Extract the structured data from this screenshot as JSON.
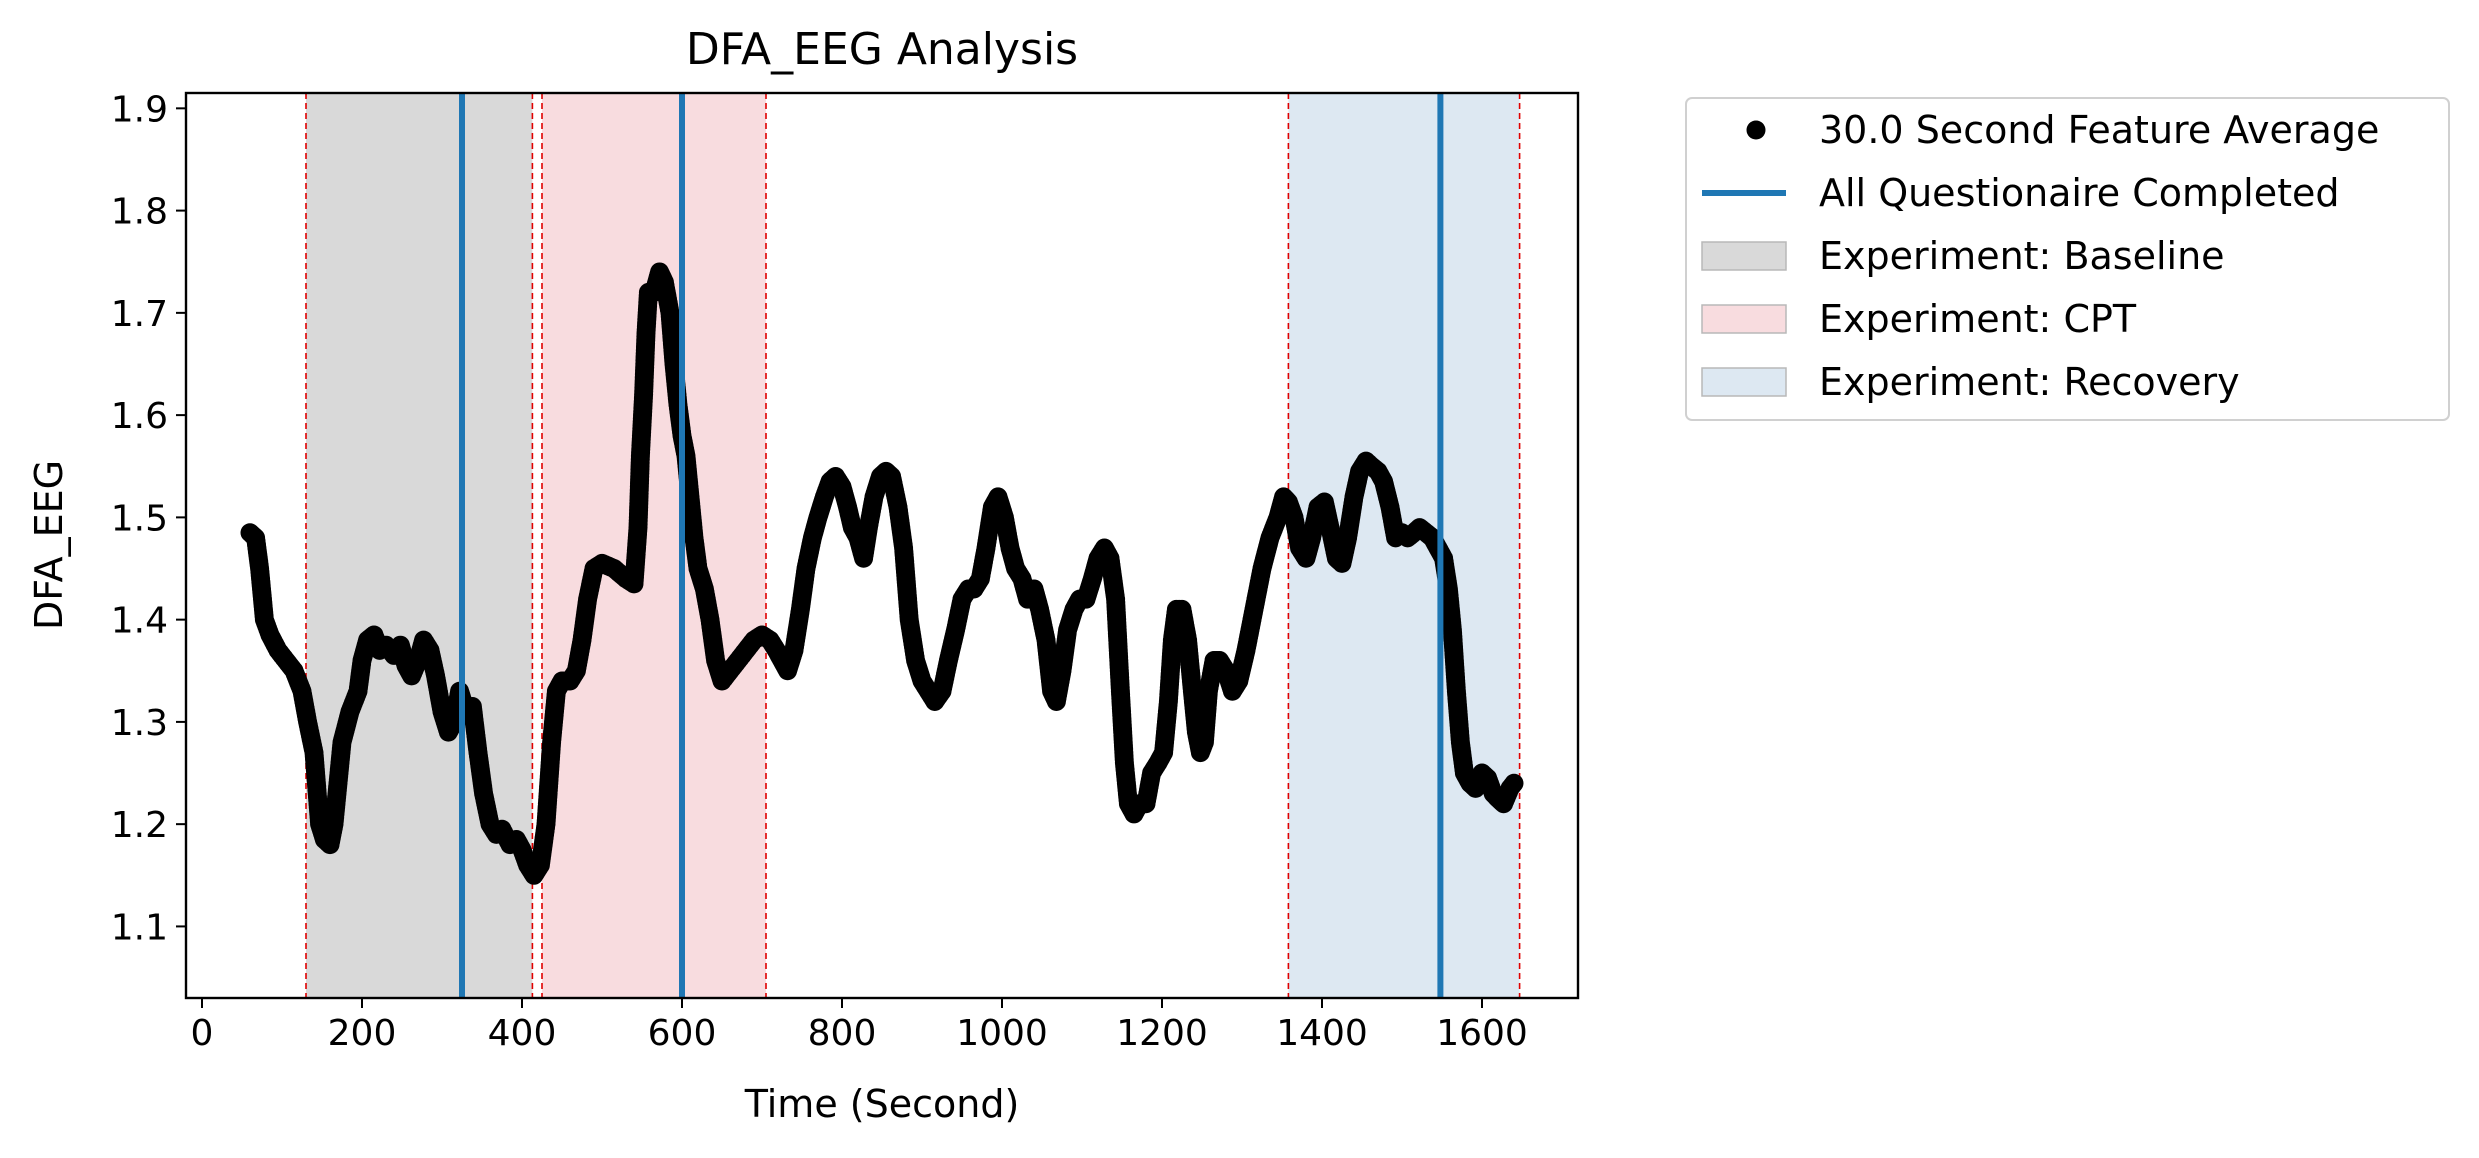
{
  "chart_data": {
    "type": "scatter",
    "title": "DFA_EEG Analysis",
    "xlabel": "Time (Second)",
    "ylabel": "DFA_EEG",
    "xlim": [
      -20,
      1720
    ],
    "ylim": [
      1.03,
      1.915
    ],
    "xticks": [
      0,
      200,
      400,
      600,
      800,
      1000,
      1200,
      1400,
      1600
    ],
    "yticks": [
      1.1,
      1.2,
      1.3,
      1.4,
      1.5,
      1.6,
      1.7,
      1.8,
      1.9
    ],
    "grid": false,
    "legend_position": "outside-right-top",
    "legend": [
      {
        "label": "30.0 Second Feature Average",
        "kind": "marker"
      },
      {
        "label": "All Questionaire Completed",
        "kind": "line"
      },
      {
        "label": "Experiment: Baseline",
        "kind": "patch"
      },
      {
        "label": "Experiment: CPT",
        "kind": "patch"
      },
      {
        "label": "Experiment: Recovery",
        "kind": "patch"
      }
    ],
    "spans": [
      {
        "name": "Experiment: Baseline",
        "start": 130,
        "end": 413,
        "color": "#d9d9d9"
      },
      {
        "name": "Experiment: CPT",
        "start": 425,
        "end": 705,
        "color": "#f8dcdf"
      },
      {
        "name": "Experiment: Recovery",
        "start": 1358,
        "end": 1647,
        "color": "#dde8f2"
      }
    ],
    "questionnaire_lines": [
      325,
      600,
      1548
    ],
    "boundary_color": "#e00000",
    "line_color": "#1f77b4",
    "marker_color": "#000000",
    "series": [
      {
        "name": "30.0 Second Feature Average",
        "points": [
          [
            60,
            1.485
          ],
          [
            67,
            1.48
          ],
          [
            72,
            1.45
          ],
          [
            78,
            1.4
          ],
          [
            85,
            1.385
          ],
          [
            95,
            1.37
          ],
          [
            105,
            1.36
          ],
          [
            115,
            1.35
          ],
          [
            125,
            1.33
          ],
          [
            132,
            1.3
          ],
          [
            140,
            1.27
          ],
          [
            147,
            1.2
          ],
          [
            153,
            1.185
          ],
          [
            160,
            1.18
          ],
          [
            165,
            1.2
          ],
          [
            170,
            1.24
          ],
          [
            175,
            1.28
          ],
          [
            185,
            1.31
          ],
          [
            195,
            1.33
          ],
          [
            200,
            1.36
          ],
          [
            207,
            1.38
          ],
          [
            215,
            1.385
          ],
          [
            222,
            1.37
          ],
          [
            230,
            1.375
          ],
          [
            240,
            1.365
          ],
          [
            248,
            1.375
          ],
          [
            255,
            1.355
          ],
          [
            262,
            1.345
          ],
          [
            270,
            1.36
          ],
          [
            277,
            1.38
          ],
          [
            285,
            1.37
          ],
          [
            292,
            1.345
          ],
          [
            300,
            1.31
          ],
          [
            308,
            1.29
          ],
          [
            315,
            1.3
          ],
          [
            322,
            1.33
          ],
          [
            330,
            1.31
          ],
          [
            338,
            1.315
          ],
          [
            345,
            1.27
          ],
          [
            352,
            1.23
          ],
          [
            360,
            1.2
          ],
          [
            368,
            1.19
          ],
          [
            375,
            1.195
          ],
          [
            385,
            1.18
          ],
          [
            393,
            1.185
          ],
          [
            400,
            1.175
          ],
          [
            407,
            1.16
          ],
          [
            415,
            1.15
          ],
          [
            423,
            1.16
          ],
          [
            430,
            1.2
          ],
          [
            437,
            1.28
          ],
          [
            443,
            1.33
          ],
          [
            450,
            1.34
          ],
          [
            460,
            1.34
          ],
          [
            468,
            1.35
          ],
          [
            475,
            1.38
          ],
          [
            482,
            1.42
          ],
          [
            490,
            1.45
          ],
          [
            500,
            1.455
          ],
          [
            515,
            1.45
          ],
          [
            530,
            1.44
          ],
          [
            540,
            1.435
          ],
          [
            545,
            1.49
          ],
          [
            548,
            1.56
          ],
          [
            552,
            1.62
          ],
          [
            555,
            1.68
          ],
          [
            558,
            1.72
          ],
          [
            565,
            1.72
          ],
          [
            572,
            1.74
          ],
          [
            578,
            1.73
          ],
          [
            585,
            1.7
          ],
          [
            590,
            1.65
          ],
          [
            595,
            1.61
          ],
          [
            600,
            1.58
          ],
          [
            605,
            1.56
          ],
          [
            610,
            1.52
          ],
          [
            615,
            1.48
          ],
          [
            620,
            1.45
          ],
          [
            628,
            1.43
          ],
          [
            635,
            1.4
          ],
          [
            642,
            1.36
          ],
          [
            650,
            1.34
          ],
          [
            660,
            1.35
          ],
          [
            670,
            1.36
          ],
          [
            680,
            1.37
          ],
          [
            690,
            1.38
          ],
          [
            700,
            1.385
          ],
          [
            710,
            1.38
          ],
          [
            718,
            1.37
          ],
          [
            725,
            1.36
          ],
          [
            732,
            1.35
          ],
          [
            740,
            1.37
          ],
          [
            748,
            1.41
          ],
          [
            755,
            1.45
          ],
          [
            763,
            1.48
          ],
          [
            770,
            1.5
          ],
          [
            778,
            1.52
          ],
          [
            785,
            1.535
          ],
          [
            792,
            1.54
          ],
          [
            800,
            1.53
          ],
          [
            807,
            1.51
          ],
          [
            813,
            1.49
          ],
          [
            820,
            1.48
          ],
          [
            827,
            1.46
          ],
          [
            833,
            1.49
          ],
          [
            840,
            1.52
          ],
          [
            848,
            1.54
          ],
          [
            855,
            1.545
          ],
          [
            862,
            1.54
          ],
          [
            870,
            1.51
          ],
          [
            877,
            1.47
          ],
          [
            884,
            1.4
          ],
          [
            892,
            1.36
          ],
          [
            900,
            1.34
          ],
          [
            908,
            1.33
          ],
          [
            916,
            1.32
          ],
          [
            925,
            1.33
          ],
          [
            933,
            1.36
          ],
          [
            942,
            1.39
          ],
          [
            950,
            1.42
          ],
          [
            958,
            1.43
          ],
          [
            965,
            1.43
          ],
          [
            973,
            1.44
          ],
          [
            980,
            1.47
          ],
          [
            988,
            1.51
          ],
          [
            995,
            1.52
          ],
          [
            1003,
            1.5
          ],
          [
            1010,
            1.47
          ],
          [
            1017,
            1.45
          ],
          [
            1025,
            1.44
          ],
          [
            1032,
            1.42
          ],
          [
            1040,
            1.43
          ],
          [
            1047,
            1.41
          ],
          [
            1055,
            1.38
          ],
          [
            1062,
            1.33
          ],
          [
            1068,
            1.32
          ],
          [
            1075,
            1.35
          ],
          [
            1082,
            1.39
          ],
          [
            1090,
            1.41
          ],
          [
            1097,
            1.42
          ],
          [
            1105,
            1.42
          ],
          [
            1113,
            1.44
          ],
          [
            1120,
            1.46
          ],
          [
            1128,
            1.47
          ],
          [
            1135,
            1.46
          ],
          [
            1142,
            1.42
          ],
          [
            1148,
            1.33
          ],
          [
            1153,
            1.26
          ],
          [
            1158,
            1.22
          ],
          [
            1165,
            1.21
          ],
          [
            1172,
            1.22
          ],
          [
            1180,
            1.22
          ],
          [
            1187,
            1.25
          ],
          [
            1195,
            1.26
          ],
          [
            1202,
            1.27
          ],
          [
            1208,
            1.32
          ],
          [
            1213,
            1.38
          ],
          [
            1218,
            1.41
          ],
          [
            1225,
            1.41
          ],
          [
            1232,
            1.38
          ],
          [
            1238,
            1.33
          ],
          [
            1243,
            1.29
          ],
          [
            1248,
            1.27
          ],
          [
            1253,
            1.28
          ],
          [
            1258,
            1.33
          ],
          [
            1265,
            1.36
          ],
          [
            1272,
            1.36
          ],
          [
            1280,
            1.35
          ],
          [
            1288,
            1.33
          ],
          [
            1296,
            1.34
          ],
          [
            1305,
            1.37
          ],
          [
            1315,
            1.41
          ],
          [
            1325,
            1.45
          ],
          [
            1335,
            1.48
          ],
          [
            1345,
            1.5
          ],
          [
            1352,
            1.52
          ],
          [
            1358,
            1.515
          ],
          [
            1365,
            1.5
          ],
          [
            1372,
            1.47
          ],
          [
            1380,
            1.46
          ],
          [
            1387,
            1.48
          ],
          [
            1395,
            1.51
          ],
          [
            1403,
            1.515
          ],
          [
            1410,
            1.49
          ],
          [
            1418,
            1.46
          ],
          [
            1425,
            1.455
          ],
          [
            1432,
            1.48
          ],
          [
            1440,
            1.52
          ],
          [
            1447,
            1.545
          ],
          [
            1455,
            1.555
          ],
          [
            1462,
            1.55
          ],
          [
            1470,
            1.545
          ],
          [
            1477,
            1.535
          ],
          [
            1485,
            1.51
          ],
          [
            1492,
            1.48
          ],
          [
            1500,
            1.485
          ],
          [
            1507,
            1.48
          ],
          [
            1515,
            1.485
          ],
          [
            1522,
            1.49
          ],
          [
            1530,
            1.485
          ],
          [
            1538,
            1.48
          ],
          [
            1545,
            1.47
          ],
          [
            1552,
            1.46
          ],
          [
            1558,
            1.43
          ],
          [
            1563,
            1.39
          ],
          [
            1568,
            1.33
          ],
          [
            1573,
            1.28
          ],
          [
            1578,
            1.25
          ],
          [
            1585,
            1.24
          ],
          [
            1592,
            1.235
          ],
          [
            1600,
            1.25
          ],
          [
            1607,
            1.245
          ],
          [
            1614,
            1.23
          ],
          [
            1620,
            1.225
          ],
          [
            1627,
            1.22
          ],
          [
            1635,
            1.235
          ],
          [
            1640,
            1.24
          ]
        ]
      }
    ]
  }
}
